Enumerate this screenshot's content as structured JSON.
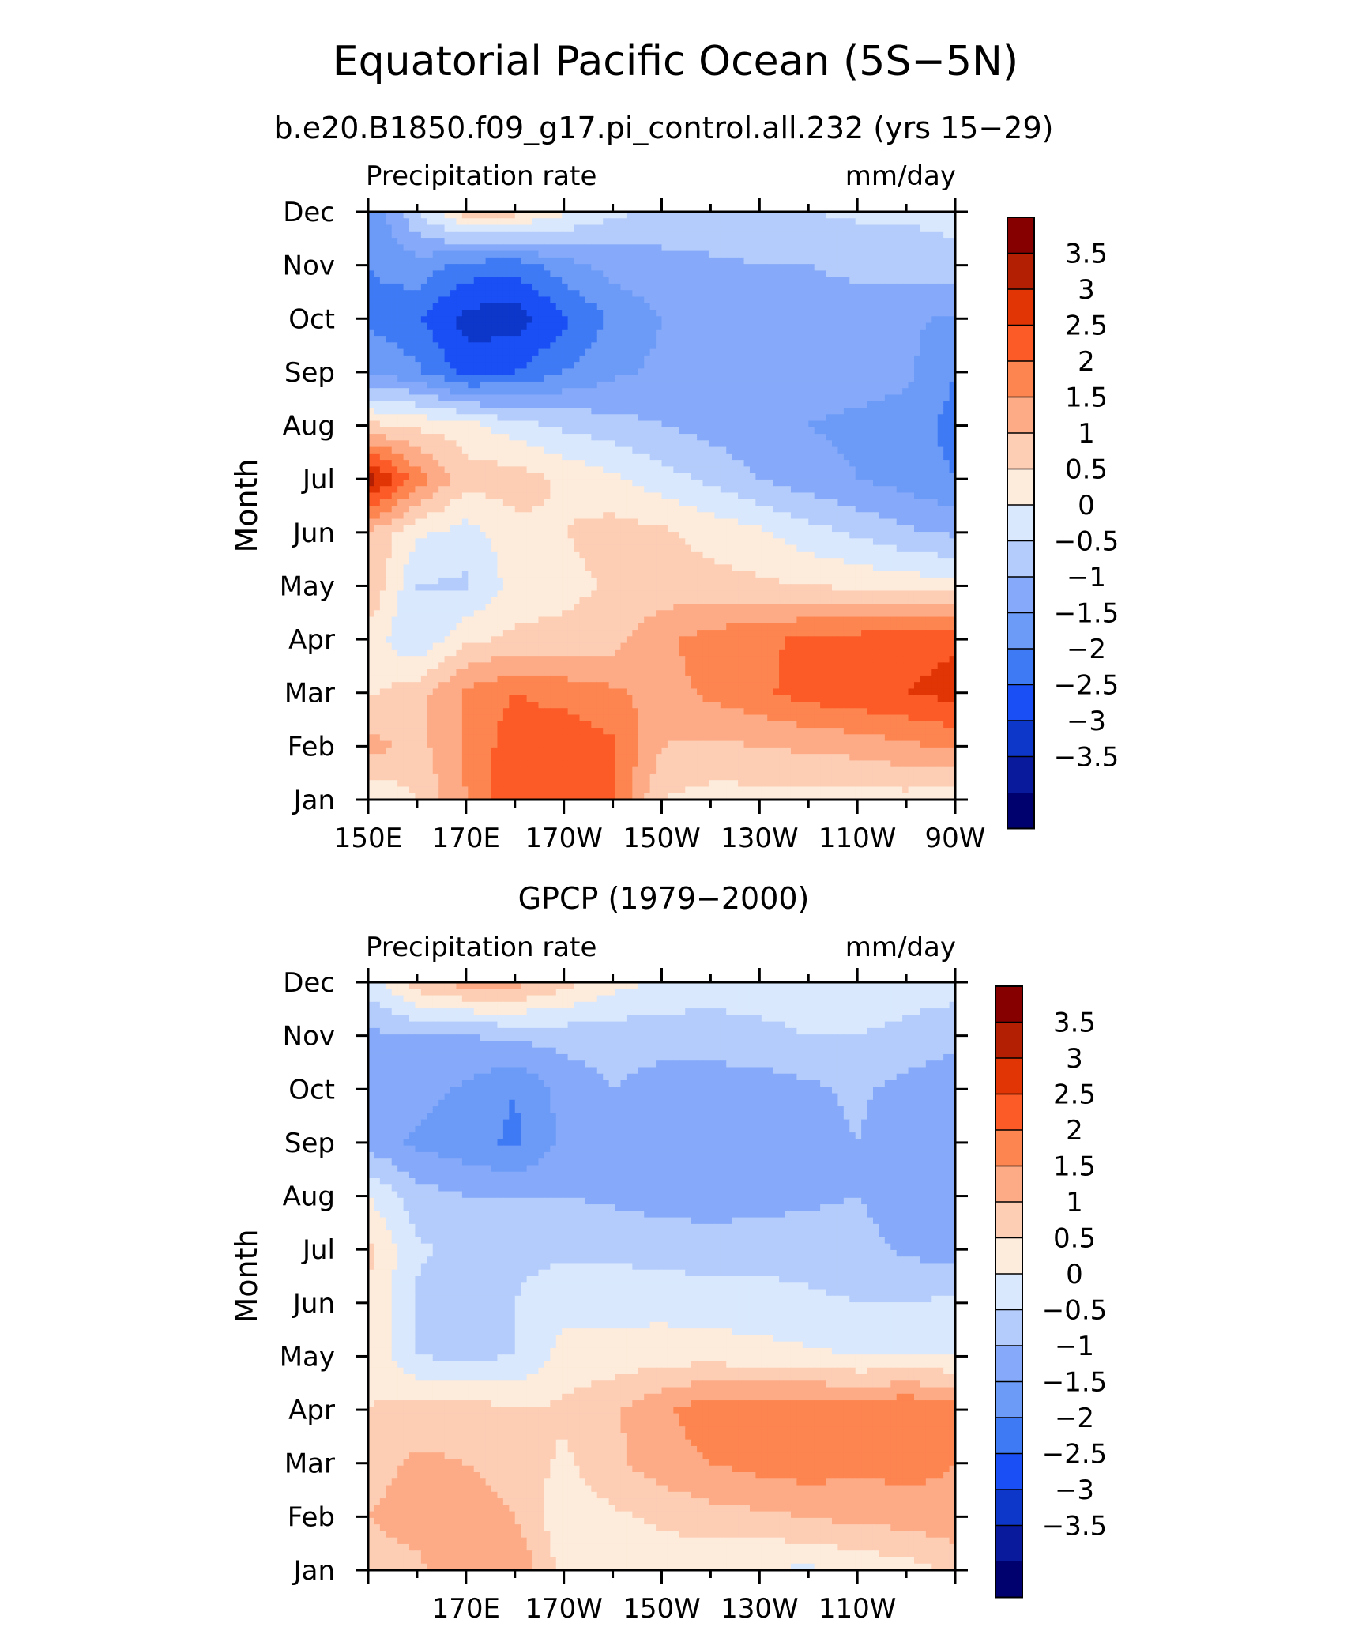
{
  "figure": {
    "title": "Equatorial Pacific Ocean (5S−5N)",
    "subtitle": "b.e20.B1850.f09_g17.pi_control.all.232 (yrs 15−29)"
  },
  "chart_data": [
    {
      "type": "heatmap",
      "panel": "model",
      "title": "",
      "left_label": "Precipitation rate",
      "right_label": "mm/day",
      "xlabel": "",
      "ylabel": "Month",
      "x_ticks": [
        "150E",
        "170E",
        "170W",
        "150W",
        "130W",
        "110W",
        "90W"
      ],
      "y_ticks": [
        "Jan",
        "Feb",
        "Mar",
        "Apr",
        "May",
        "Jun",
        "Jul",
        "Aug",
        "Sep",
        "Oct",
        "Nov",
        "Dec"
      ],
      "x_longitudes_east": [
        150,
        160,
        170,
        180,
        190,
        200,
        210,
        220,
        230,
        240,
        250,
        260,
        270
      ],
      "values": [
        [
          0.0,
          0.5,
          1.5,
          2.5,
          2.5,
          2.0,
          0.5,
          0.3,
          0.3,
          0.3,
          0.3,
          0.3,
          0.2
        ],
        [
          1.2,
          0.8,
          1.6,
          2.3,
          2.4,
          2.1,
          1.0,
          0.9,
          1.0,
          1.1,
          1.2,
          1.4,
          1.6
        ],
        [
          0.4,
          0.8,
          1.6,
          2.0,
          1.8,
          1.6,
          1.3,
          1.6,
          1.9,
          2.2,
          2.4,
          2.5,
          2.7
        ],
        [
          0.3,
          -0.5,
          0.4,
          0.6,
          0.7,
          0.8,
          1.4,
          1.7,
          1.9,
          2.1,
          2.2,
          2.3,
          2.4
        ],
        [
          1.0,
          -0.5,
          -0.6,
          0.2,
          0.3,
          0.6,
          0.7,
          0.7,
          0.6,
          0.5,
          0.4,
          0.3,
          0.2
        ],
        [
          1.0,
          0.1,
          -0.2,
          0.3,
          0.5,
          0.7,
          0.6,
          0.3,
          0.1,
          -0.3,
          -0.6,
          -0.9,
          -1.1
        ],
        [
          3.3,
          1.8,
          0.7,
          0.8,
          0.4,
          0.1,
          -0.3,
          -0.6,
          -1.0,
          -1.3,
          -1.5,
          -1.7,
          -2.0
        ],
        [
          0.6,
          0.4,
          0.2,
          -0.3,
          -0.6,
          -0.8,
          -1.0,
          -1.2,
          -1.4,
          -1.5,
          -1.6,
          -1.7,
          -2.2
        ],
        [
          -1.5,
          -1.9,
          -2.7,
          -2.5,
          -2.0,
          -1.6,
          -1.4,
          -1.3,
          -1.3,
          -1.3,
          -1.3,
          -1.4,
          -2.0
        ],
        [
          -2.1,
          -2.4,
          -3.2,
          -3.3,
          -2.6,
          -1.9,
          -1.5,
          -1.3,
          -1.2,
          -1.2,
          -1.2,
          -1.4,
          -1.6
        ],
        [
          -2.0,
          -1.7,
          -2.2,
          -2.3,
          -1.7,
          -1.3,
          -1.2,
          -1.1,
          -1.0,
          -1.0,
          -0.9,
          -0.8,
          -0.7
        ],
        [
          -2.0,
          -0.5,
          0.7,
          0.7,
          0.1,
          -0.4,
          -0.6,
          -0.6,
          -0.6,
          -0.5,
          -0.4,
          -0.4,
          -0.3
        ]
      ],
      "colorbar": {
        "min": -4,
        "max": 4,
        "step": 0.5,
        "labels": [
          "3.5",
          "3",
          "2.5",
          "2",
          "1.5",
          "1",
          "0.5",
          "0",
          "−0.5",
          "−1",
          "−1.5",
          "−2",
          "−2.5",
          "−3",
          "−3.5"
        ]
      }
    },
    {
      "type": "heatmap",
      "panel": "observations",
      "title": "GPCP (1979−2000)",
      "left_label": "Precipitation rate",
      "right_label": "mm/day",
      "xlabel": "",
      "ylabel": "Month",
      "x_ticks": [
        "170E",
        "170W",
        "150W",
        "130W",
        "110W"
      ],
      "y_ticks": [
        "Jan",
        "Feb",
        "Mar",
        "Apr",
        "May",
        "Jun",
        "Jul",
        "Aug",
        "Sep",
        "Oct",
        "Nov",
        "Dec"
      ],
      "x_longitudes_east": [
        150,
        160,
        170,
        180,
        190,
        200,
        210,
        220,
        230,
        240,
        250,
        260,
        270
      ],
      "values": [
        [
          0.8,
          0.9,
          1.3,
          1.5,
          0.3,
          0.2,
          0.2,
          0.1,
          0.0,
          -0.1,
          0.1,
          0.3,
          0.6
        ],
        [
          1.0,
          1.2,
          1.3,
          1.0,
          0.1,
          0.4,
          0.6,
          0.8,
          0.9,
          1.0,
          1.2,
          1.2,
          1.4
        ],
        [
          0.8,
          1.1,
          1.0,
          0.8,
          0.4,
          0.9,
          1.3,
          1.5,
          1.7,
          1.8,
          1.6,
          1.7,
          1.5
        ],
        [
          0.5,
          0.7,
          0.8,
          0.5,
          0.6,
          0.9,
          1.4,
          1.8,
          1.9,
          1.9,
          1.8,
          2.0,
          1.8
        ],
        [
          0.4,
          -0.5,
          -0.6,
          -0.5,
          0.2,
          0.2,
          0.3,
          0.3,
          0.2,
          0.1,
          0.0,
          0.0,
          0.0
        ],
        [
          0.5,
          -0.6,
          -0.8,
          -0.5,
          -0.2,
          -0.2,
          -0.2,
          -0.3,
          -0.3,
          -0.4,
          -0.5,
          -0.5,
          -0.4
        ],
        [
          0.6,
          -0.4,
          -0.7,
          -0.6,
          -0.6,
          -0.6,
          -0.7,
          -0.7,
          -0.7,
          -0.7,
          -0.8,
          -1.1,
          -1.2
        ],
        [
          0.0,
          -0.8,
          -1.0,
          -1.0,
          -1.0,
          -1.1,
          -1.2,
          -1.3,
          -1.2,
          -1.1,
          -1.0,
          -1.3,
          -1.3
        ],
        [
          -1.2,
          -1.6,
          -1.8,
          -2.1,
          -1.4,
          -1.0,
          -1.1,
          -1.3,
          -1.3,
          -1.2,
          -1.0,
          -1.3,
          -1.3
        ],
        [
          -1.2,
          -1.3,
          -1.6,
          -2.0,
          -1.3,
          -1.0,
          -1.2,
          -1.3,
          -1.3,
          -1.1,
          -0.9,
          -1.2,
          -1.4
        ],
        [
          -1.1,
          -1.0,
          -1.0,
          -0.9,
          -0.8,
          -0.8,
          -0.8,
          -0.7,
          -0.6,
          -0.5,
          -0.5,
          -0.6,
          -0.8
        ],
        [
          -0.3,
          0.8,
          1.2,
          1.2,
          0.7,
          0.2,
          -0.1,
          -0.3,
          -0.3,
          -0.3,
          -0.3,
          -0.3,
          -0.3
        ]
      ],
      "colorbar": {
        "min": -4,
        "max": 4,
        "step": 0.5,
        "labels": [
          "3.5",
          "3",
          "2.5",
          "2",
          "1.5",
          "1",
          "0.5",
          "0",
          "−0.5",
          "−1",
          "−1.5",
          "−2",
          "−2.5",
          "−3",
          "−3.5"
        ]
      }
    }
  ],
  "palette": [
    "#00006e",
    "#0a1a9c",
    "#0d37c9",
    "#1a4ff5",
    "#3f7af5",
    "#6c9bf7",
    "#86aaf9",
    "#b4ccfb",
    "#d9e8fd",
    "#fdebdb",
    "#fdcdb4",
    "#fdab86",
    "#fd8550",
    "#fc5a26",
    "#e13505",
    "#b21f02",
    "#870000"
  ]
}
